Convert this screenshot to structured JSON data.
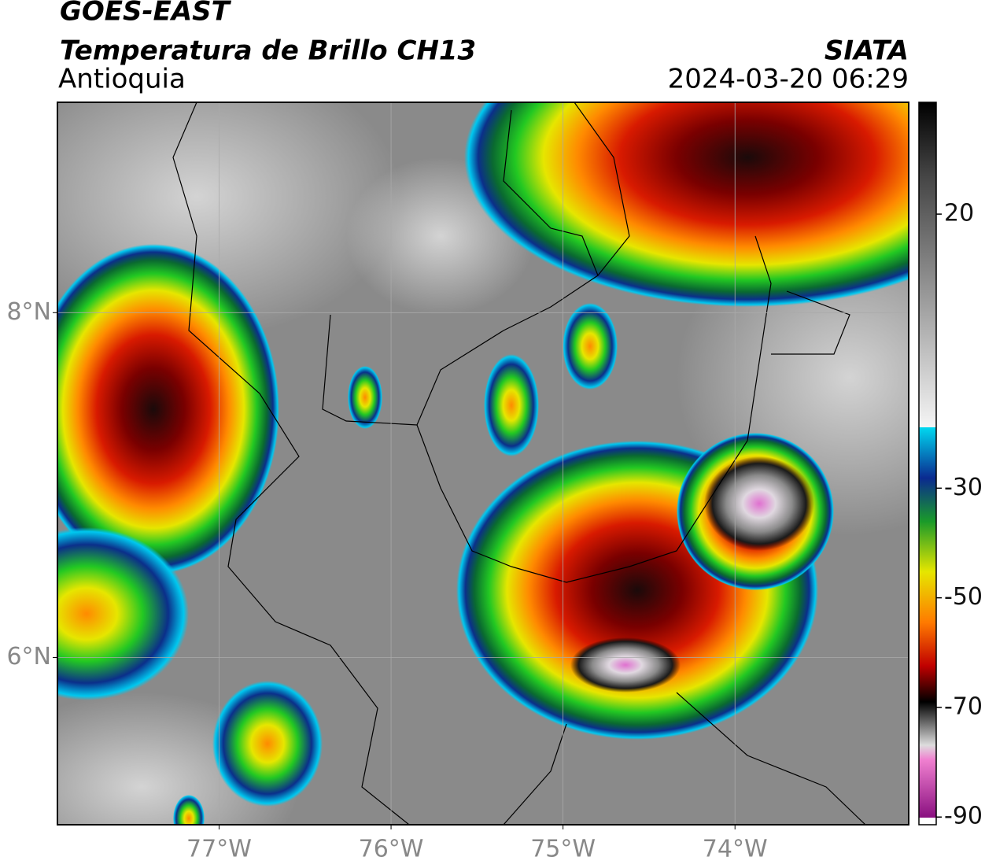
{
  "header": {
    "satellite": "GOES-EAST",
    "product": "Temperatura de Brillo CH13",
    "region": "Antioquia",
    "source": "SIATA",
    "datetime": "2024-03-20 06:29"
  },
  "map": {
    "xlim": [
      -77.94,
      -72.99
    ],
    "ylim": [
      5.03,
      9.22
    ],
    "xticks": [
      {
        "value": -77,
        "label": "77°W"
      },
      {
        "value": -76,
        "label": "76°W"
      },
      {
        "value": -75,
        "label": "75°W"
      },
      {
        "value": -74,
        "label": "74°W"
      }
    ],
    "yticks": [
      {
        "value": 8,
        "label": "8°N"
      },
      {
        "value": 6,
        "label": "6°N"
      }
    ],
    "grid": true
  },
  "colorbar": {
    "lim": [
      -91.4,
      40.4
    ],
    "ticks": [
      20,
      -30,
      -50,
      -70,
      -90
    ]
  }
}
